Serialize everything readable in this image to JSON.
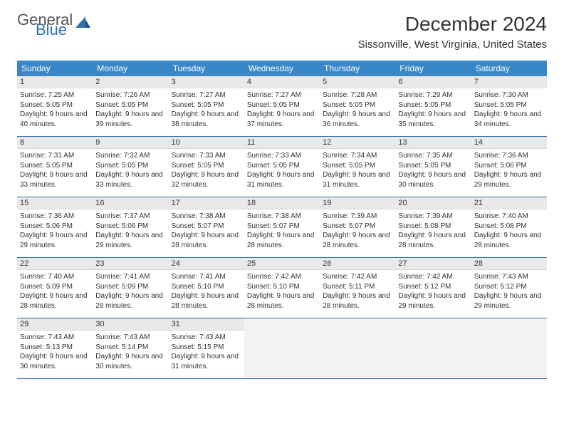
{
  "logo": {
    "general": "General",
    "blue": "Blue"
  },
  "title": "December 2024",
  "subtitle": "Sissonville, West Virginia, United States",
  "colors": {
    "header_bg": "#3a87c8",
    "header_text": "#ffffff",
    "week_border": "#2f6fb0",
    "daynum_bg": "#e9e9e9",
    "logo_blue": "#2f6fb0"
  },
  "day_headers": [
    "Sunday",
    "Monday",
    "Tuesday",
    "Wednesday",
    "Thursday",
    "Friday",
    "Saturday"
  ],
  "weeks": [
    [
      {
        "n": "1",
        "sr": "7:25 AM",
        "ss": "5:05 PM",
        "dl": "9 hours and 40 minutes."
      },
      {
        "n": "2",
        "sr": "7:26 AM",
        "ss": "5:05 PM",
        "dl": "9 hours and 39 minutes."
      },
      {
        "n": "3",
        "sr": "7:27 AM",
        "ss": "5:05 PM",
        "dl": "9 hours and 38 minutes."
      },
      {
        "n": "4",
        "sr": "7:27 AM",
        "ss": "5:05 PM",
        "dl": "9 hours and 37 minutes."
      },
      {
        "n": "5",
        "sr": "7:28 AM",
        "ss": "5:05 PM",
        "dl": "9 hours and 36 minutes."
      },
      {
        "n": "6",
        "sr": "7:29 AM",
        "ss": "5:05 PM",
        "dl": "9 hours and 35 minutes."
      },
      {
        "n": "7",
        "sr": "7:30 AM",
        "ss": "5:05 PM",
        "dl": "9 hours and 34 minutes."
      }
    ],
    [
      {
        "n": "8",
        "sr": "7:31 AM",
        "ss": "5:05 PM",
        "dl": "9 hours and 33 minutes."
      },
      {
        "n": "9",
        "sr": "7:32 AM",
        "ss": "5:05 PM",
        "dl": "9 hours and 33 minutes."
      },
      {
        "n": "10",
        "sr": "7:33 AM",
        "ss": "5:05 PM",
        "dl": "9 hours and 32 minutes."
      },
      {
        "n": "11",
        "sr": "7:33 AM",
        "ss": "5:05 PM",
        "dl": "9 hours and 31 minutes."
      },
      {
        "n": "12",
        "sr": "7:34 AM",
        "ss": "5:05 PM",
        "dl": "9 hours and 31 minutes."
      },
      {
        "n": "13",
        "sr": "7:35 AM",
        "ss": "5:05 PM",
        "dl": "9 hours and 30 minutes."
      },
      {
        "n": "14",
        "sr": "7:36 AM",
        "ss": "5:06 PM",
        "dl": "9 hours and 29 minutes."
      }
    ],
    [
      {
        "n": "15",
        "sr": "7:36 AM",
        "ss": "5:06 PM",
        "dl": "9 hours and 29 minutes."
      },
      {
        "n": "16",
        "sr": "7:37 AM",
        "ss": "5:06 PM",
        "dl": "9 hours and 29 minutes."
      },
      {
        "n": "17",
        "sr": "7:38 AM",
        "ss": "5:07 PM",
        "dl": "9 hours and 28 minutes."
      },
      {
        "n": "18",
        "sr": "7:38 AM",
        "ss": "5:07 PM",
        "dl": "9 hours and 28 minutes."
      },
      {
        "n": "19",
        "sr": "7:39 AM",
        "ss": "5:07 PM",
        "dl": "9 hours and 28 minutes."
      },
      {
        "n": "20",
        "sr": "7:39 AM",
        "ss": "5:08 PM",
        "dl": "9 hours and 28 minutes."
      },
      {
        "n": "21",
        "sr": "7:40 AM",
        "ss": "5:08 PM",
        "dl": "9 hours and 28 minutes."
      }
    ],
    [
      {
        "n": "22",
        "sr": "7:40 AM",
        "ss": "5:09 PM",
        "dl": "9 hours and 28 minutes."
      },
      {
        "n": "23",
        "sr": "7:41 AM",
        "ss": "5:09 PM",
        "dl": "9 hours and 28 minutes."
      },
      {
        "n": "24",
        "sr": "7:41 AM",
        "ss": "5:10 PM",
        "dl": "9 hours and 28 minutes."
      },
      {
        "n": "25",
        "sr": "7:42 AM",
        "ss": "5:10 PM",
        "dl": "9 hours and 28 minutes."
      },
      {
        "n": "26",
        "sr": "7:42 AM",
        "ss": "5:11 PM",
        "dl": "9 hours and 28 minutes."
      },
      {
        "n": "27",
        "sr": "7:42 AM",
        "ss": "5:12 PM",
        "dl": "9 hours and 29 minutes."
      },
      {
        "n": "28",
        "sr": "7:43 AM",
        "ss": "5:12 PM",
        "dl": "9 hours and 29 minutes."
      }
    ],
    [
      {
        "n": "29",
        "sr": "7:43 AM",
        "ss": "5:13 PM",
        "dl": "9 hours and 30 minutes."
      },
      {
        "n": "30",
        "sr": "7:43 AM",
        "ss": "5:14 PM",
        "dl": "9 hours and 30 minutes."
      },
      {
        "n": "31",
        "sr": "7:43 AM",
        "ss": "5:15 PM",
        "dl": "9 hours and 31 minutes."
      },
      null,
      null,
      null,
      null
    ]
  ]
}
